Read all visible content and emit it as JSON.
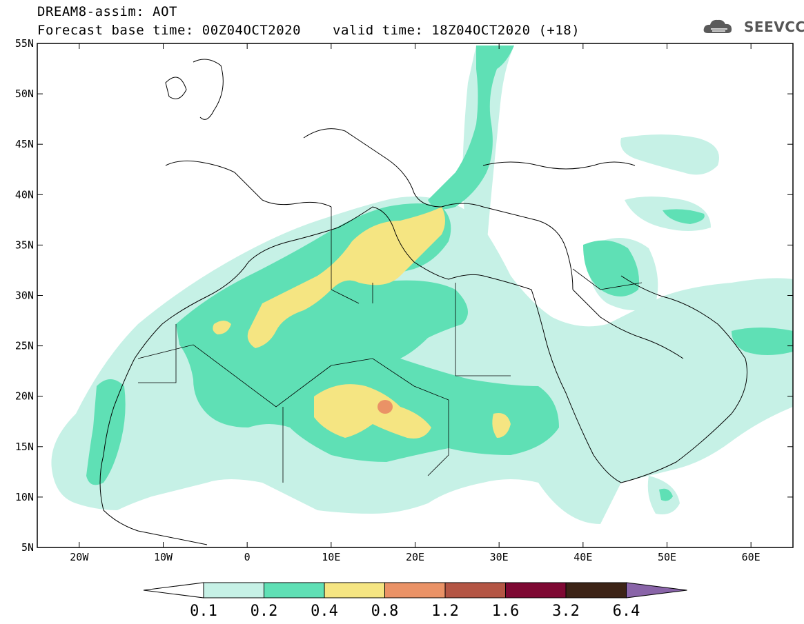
{
  "title": {
    "line1": "DREAM8-assim: AOT",
    "line2": "Forecast base time: 00Z04OCT2020",
    "valid": "valid time: 18Z04OCT2020 (+18)"
  },
  "logo": {
    "text": "SEEVCCC",
    "icon": "cloud-icon"
  },
  "map": {
    "lon_range": [
      -25,
      65
    ],
    "lat_range": [
      5,
      55
    ],
    "lon_ticks": [
      {
        "value": -20,
        "label": "20W"
      },
      {
        "value": -10,
        "label": "10W"
      },
      {
        "value": 0,
        "label": "0"
      },
      {
        "value": 10,
        "label": "10E"
      },
      {
        "value": 20,
        "label": "20E"
      },
      {
        "value": 30,
        "label": "30E"
      },
      {
        "value": 40,
        "label": "40E"
      },
      {
        "value": 50,
        "label": "50E"
      },
      {
        "value": 60,
        "label": "60E"
      }
    ],
    "lat_ticks": [
      {
        "value": 55,
        "label": "55N"
      },
      {
        "value": 50,
        "label": "50N"
      },
      {
        "value": 45,
        "label": "45N"
      },
      {
        "value": 40,
        "label": "40N"
      },
      {
        "value": 35,
        "label": "35N"
      },
      {
        "value": 30,
        "label": "30N"
      },
      {
        "value": 25,
        "label": "25N"
      },
      {
        "value": 20,
        "label": "20N"
      },
      {
        "value": 15,
        "label": "15N"
      },
      {
        "value": 10,
        "label": "10N"
      },
      {
        "value": 5,
        "label": "5N"
      }
    ]
  },
  "colorbar": {
    "colors": [
      "#c6f1e6",
      "#5fe0b5",
      "#f5e582",
      "#ea9266",
      "#b45544",
      "#7e0833",
      "#3c2316",
      "#8964a8"
    ],
    "labels": [
      "0.1",
      "0.2",
      "0.4",
      "0.8",
      "1.2",
      "1.6",
      "3.2",
      "6.4"
    ]
  },
  "fields": {
    "colors": {
      "c1": "#c6f1e6",
      "c2": "#5fe0b5",
      "c3": "#f5e582",
      "c4": "#ea9266"
    }
  }
}
